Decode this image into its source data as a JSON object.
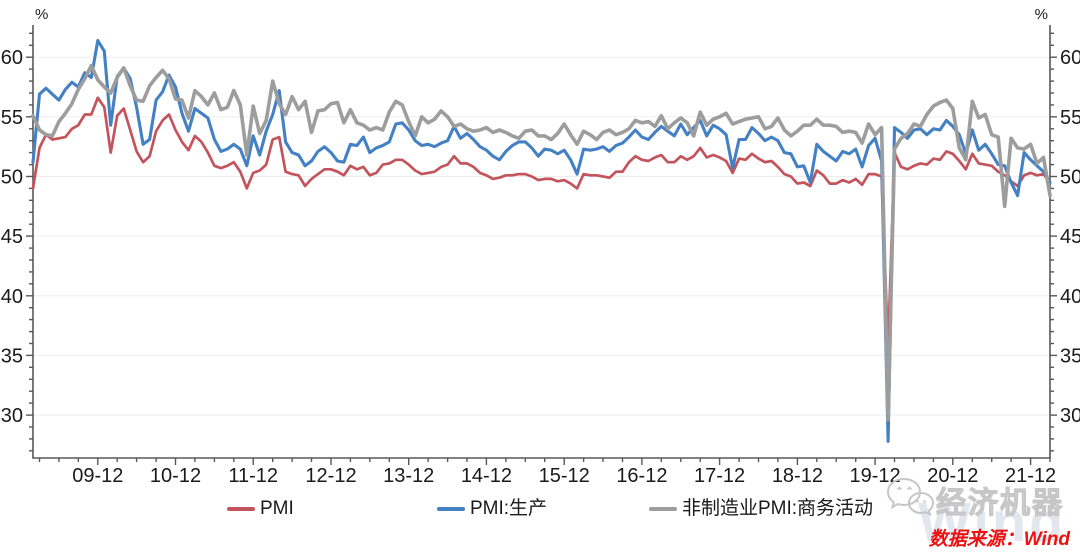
{
  "chart_data": {
    "type": "line",
    "title": "",
    "unit_left": "%",
    "unit_right": "%",
    "x_monthly_start": "2009-02",
    "x_monthly_end": "2022-03",
    "ylim": [
      26.4,
      62.7
    ],
    "yticks": [
      30,
      35,
      40,
      45,
      50,
      55,
      60
    ],
    "y_minor_step": 1,
    "x_minor_step_months": 3,
    "grid": "horizontal-major-only",
    "legend_position": "bottom",
    "axis_color": "#58585a",
    "grid_color": "#ededed",
    "label_color": "#1a1a1a",
    "xticks": [
      {
        "i": 10,
        "label": "09-12"
      },
      {
        "i": 22,
        "label": "10-12"
      },
      {
        "i": 34,
        "label": "11-12"
      },
      {
        "i": 46,
        "label": "12-12"
      },
      {
        "i": 58,
        "label": "13-12"
      },
      {
        "i": 70,
        "label": "14-12"
      },
      {
        "i": 82,
        "label": "15-12"
      },
      {
        "i": 94,
        "label": "16-12"
      },
      {
        "i": 106,
        "label": "17-12"
      },
      {
        "i": 118,
        "label": "18-12"
      },
      {
        "i": 130,
        "label": "19-12"
      },
      {
        "i": 142,
        "label": "20-12"
      },
      {
        "i": 154,
        "label": "21-12"
      }
    ],
    "series": [
      {
        "name": "PMI",
        "color": "#c4545c",
        "width": 2.7,
        "values": [
          49,
          52.4,
          53.5,
          53.1,
          53.2,
          53.3,
          54,
          54.3,
          55.2,
          55.2,
          56.6,
          55.8,
          52,
          55.1,
          55.7,
          53.9,
          52.1,
          51.2,
          51.7,
          53.8,
          54.7,
          55.2,
          53.9,
          52.9,
          52.2,
          53.4,
          52.9,
          52,
          50.9,
          50.7,
          50.9,
          51.2,
          50.4,
          49,
          50.3,
          50.5,
          51,
          53.1,
          53.3,
          50.4,
          50.2,
          50.1,
          49.2,
          49.8,
          50.2,
          50.6,
          50.6,
          50.4,
          50.1,
          50.9,
          50.6,
          50.8,
          50.1,
          50.3,
          51,
          51.1,
          51.4,
          51.4,
          51,
          50.5,
          50.2,
          50.3,
          50.4,
          50.8,
          51,
          51.7,
          51.1,
          51.1,
          50.8,
          50.3,
          50.1,
          49.8,
          49.9,
          50.1,
          50.1,
          50.2,
          50.2,
          50,
          49.7,
          49.8,
          49.8,
          49.6,
          49.7,
          49.4,
          49,
          50.2,
          50.1,
          50.1,
          50,
          49.9,
          50.4,
          50.4,
          51.2,
          51.7,
          51.4,
          51.3,
          51.6,
          51.8,
          51.2,
          51.2,
          51.7,
          51.4,
          51.7,
          52.4,
          51.6,
          51.8,
          51.6,
          51.3,
          50.3,
          51.5,
          51.4,
          51.9,
          51.5,
          51.2,
          51.3,
          50.8,
          50.2,
          50,
          49.4,
          49.5,
          49.2,
          50.5,
          50.1,
          49.4,
          49.4,
          49.7,
          49.5,
          49.8,
          49.3,
          50.2,
          50.2,
          50,
          35.7,
          52,
          50.8,
          50.6,
          50.9,
          51.1,
          51,
          51.5,
          51.4,
          52.1,
          51.9,
          51.3,
          50.6,
          51.9,
          51.1,
          51,
          50.9,
          50.4,
          50.1,
          49.6,
          49.2,
          50.1,
          50.3,
          50.1,
          50.2,
          49.5
        ]
      },
      {
        "name": "PMI:生产",
        "color": "#4480c4",
        "width": 3.1,
        "values": [
          51.2,
          56.9,
          57.4,
          56.9,
          56.4,
          57.3,
          57.9,
          57.5,
          58.7,
          58.3,
          61.4,
          60.5,
          54.3,
          58.4,
          59.1,
          58.2,
          55.8,
          52.7,
          53.1,
          56.4,
          57.1,
          58.5,
          57.5,
          55.3,
          53.8,
          55.7,
          55.3,
          54.9,
          53.1,
          52.1,
          52.3,
          52.7,
          52.3,
          50.9,
          53.4,
          51.8,
          53.8,
          55.2,
          57.2,
          52.9,
          52,
          51.8,
          50.9,
          51.3,
          52.1,
          52.5,
          52,
          51.3,
          51.2,
          52.7,
          52.6,
          53.3,
          52,
          52.4,
          52.6,
          52.9,
          54.4,
          54.5,
          53.9,
          53,
          52.6,
          52.7,
          52.5,
          52.8,
          53,
          54.2,
          53.2,
          53.6,
          53.1,
          52.5,
          52.2,
          51.7,
          51.4,
          52.1,
          52.6,
          52.9,
          52.9,
          52.4,
          51.7,
          52.3,
          52.2,
          51.9,
          52.2,
          51.4,
          50.2,
          52.3,
          52.2,
          52.3,
          52.5,
          52.1,
          52.6,
          52.8,
          53.3,
          53.9,
          53.3,
          53.1,
          53.7,
          54.2,
          53.8,
          53.4,
          54.4,
          53.5,
          54.1,
          54.7,
          53.4,
          54.3,
          54,
          53.5,
          50.7,
          53.1,
          53.1,
          54.1,
          53.6,
          53,
          53.3,
          53,
          52,
          51.9,
          50.8,
          50.9,
          49.5,
          52.7,
          52.1,
          51.7,
          51.3,
          52.1,
          51.9,
          52.3,
          50.8,
          52.6,
          53.2,
          51.3,
          27.8,
          54.1,
          53.7,
          53.2,
          53.9,
          54,
          53.5,
          54,
          53.9,
          54.7,
          54.2,
          53.5,
          51.9,
          53.9,
          52.2,
          52.7,
          51.9,
          51,
          50.9,
          49.5,
          48.4,
          52,
          51.4,
          50.9,
          50.4,
          49.5
        ]
      },
      {
        "name": "非制造业PMI:商务活动",
        "color": "#9d9d9d",
        "width": 3.6,
        "values": [
          55.1,
          53.9,
          53.5,
          53.4,
          54.6,
          55.3,
          56.1,
          57.3,
          58.2,
          59.3,
          58.1,
          57.5,
          57,
          58.3,
          59.1,
          57.6,
          56.4,
          56.3,
          57.6,
          58.3,
          58.9,
          58.2,
          56.5,
          56.4,
          54.9,
          57.2,
          56.7,
          56,
          57,
          55.6,
          55.8,
          57.2,
          56,
          51.8,
          55.9,
          53.6,
          54.7,
          58,
          56.1,
          55.2,
          56.7,
          55.6,
          56.3,
          53.7,
          55.5,
          55.6,
          56.1,
          56.2,
          54.5,
          55.6,
          54.5,
          54.3,
          53.9,
          54.1,
          53.9,
          55.4,
          56.3,
          56,
          54.6,
          53.4,
          55,
          54.5,
          54.8,
          55.5,
          55,
          54.2,
          54.4,
          54,
          53.8,
          53.9,
          54.1,
          53.7,
          53.9,
          53.7,
          53.4,
          53.2,
          53.8,
          53.9,
          53.4,
          53.4,
          53.1,
          53.6,
          54.4,
          53.5,
          52.7,
          53.8,
          53.5,
          53.1,
          53.7,
          53.9,
          53.5,
          53.7,
          54,
          54.7,
          54.5,
          54.6,
          54.2,
          55.1,
          54,
          54.5,
          54.9,
          54.5,
          53.4,
          55.4,
          54.3,
          54.8,
          55,
          55.3,
          54.4,
          54.6,
          54.8,
          54.9,
          55,
          54,
          54.2,
          54.9,
          53.9,
          53.4,
          53.8,
          54.3,
          54.3,
          54.8,
          54.3,
          54.3,
          54.2,
          53.7,
          53.8,
          53.7,
          52.8,
          54.4,
          53.5,
          54.1,
          29.6,
          52.3,
          53.2,
          53.6,
          54.4,
          54.2,
          55.2,
          55.9,
          56.2,
          56.4,
          55.7,
          52.4,
          51.4,
          56.3,
          54.9,
          55.2,
          53.5,
          53.3,
          47.5,
          53.2,
          52.4,
          52.3,
          52.7,
          51.1,
          51.6,
          48.4
        ]
      }
    ]
  },
  "branding": {
    "brand_text": "经济机器",
    "watermark_text": "Wind",
    "wechat_icon": "wechat-bubbles-icon"
  },
  "footer": {
    "source_text": "数据来源：Wind",
    "source_color": "#ee1111"
  }
}
